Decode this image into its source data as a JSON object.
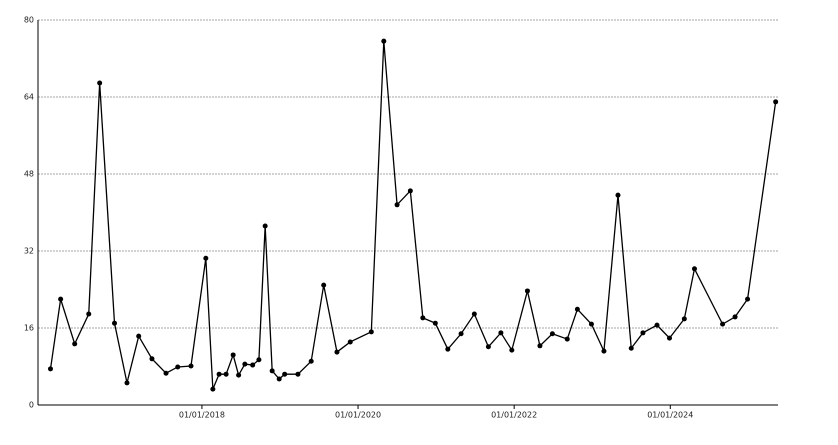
{
  "chart_data": {
    "type": "line",
    "x": [
      2016.06,
      2016.19,
      2016.37,
      2016.55,
      2016.69,
      2016.88,
      2017.04,
      2017.19,
      2017.36,
      2017.54,
      2017.69,
      2017.86,
      2018.05,
      2018.14,
      2018.22,
      2018.31,
      2018.4,
      2018.47,
      2018.55,
      2018.65,
      2018.73,
      2018.81,
      2018.9,
      2018.99,
      2019.06,
      2019.23,
      2019.4,
      2019.56,
      2019.73,
      2019.9,
      2020.17,
      2020.33,
      2020.5,
      2020.67,
      2020.83,
      2020.99,
      2021.15,
      2021.32,
      2021.49,
      2021.67,
      2021.83,
      2021.97,
      2022.17,
      2022.33,
      2022.49,
      2022.68,
      2022.81,
      2022.99,
      2023.15,
      2023.33,
      2023.5,
      2023.65,
      2023.83,
      2023.99,
      2024.18,
      2024.31,
      2024.67,
      2024.83,
      2024.99,
      2025.35
    ],
    "values": [
      7.5,
      22.0,
      12.7,
      18.9,
      66.9,
      17.0,
      4.6,
      14.3,
      9.6,
      6.6,
      7.9,
      8.1,
      30.5,
      3.3,
      6.4,
      6.4,
      10.4,
      6.2,
      8.5,
      8.3,
      9.4,
      37.2,
      7.1,
      5.4,
      6.4,
      6.4,
      9.1,
      24.9,
      11.0,
      13.1,
      15.2,
      75.6,
      41.6,
      44.5,
      18.1,
      17.0,
      11.6,
      14.8,
      18.9,
      12.1,
      15.0,
      11.4,
      23.7,
      12.3,
      14.8,
      13.7,
      19.9,
      16.8,
      11.2,
      43.6,
      11.8,
      15.0,
      16.6,
      13.9,
      17.9,
      28.3,
      16.8,
      18.3,
      22.0,
      63.0
    ],
    "color": "#000000",
    "xlim": [
      2015.9,
      2025.38
    ],
    "xticks": [
      {
        "value": 2018,
        "label": "01/01/2018"
      },
      {
        "value": 2020,
        "label": "01/01/2020"
      },
      {
        "value": 2022,
        "label": "01/01/2022"
      },
      {
        "value": 2024,
        "label": "01/01/2024"
      }
    ],
    "ylim": [
      0,
      80
    ],
    "yticks": [
      0,
      16,
      32,
      48,
      64,
      80
    ],
    "grid": true
  }
}
